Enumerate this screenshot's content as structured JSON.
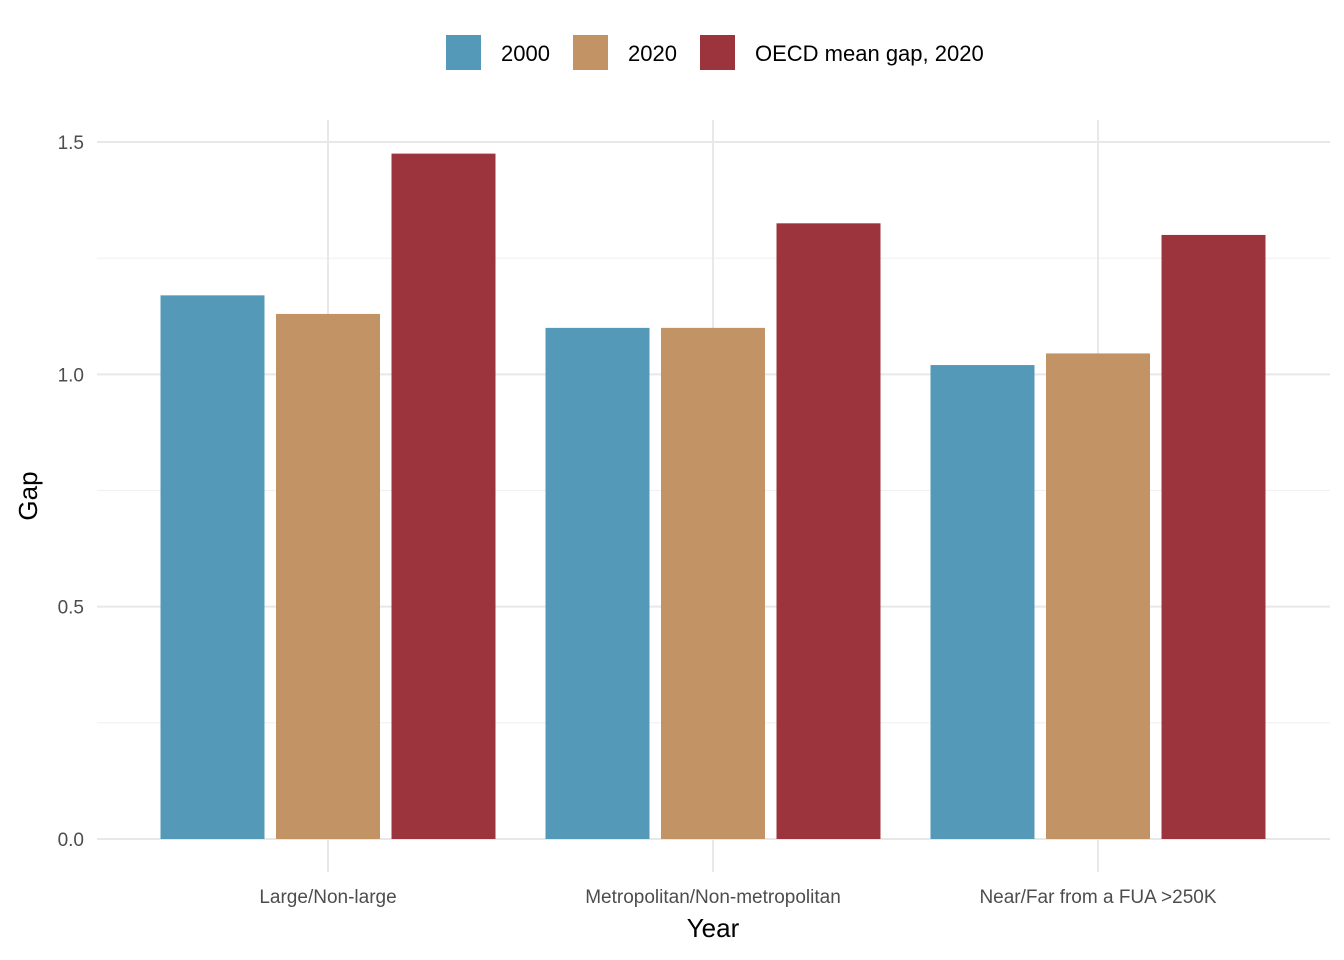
{
  "chart_data": {
    "type": "bar",
    "categories": [
      "Large/Non-large",
      "Metropolitan/Non-metropolitan",
      "Near/Far from a FUA >250K"
    ],
    "series": [
      {
        "name": "2000",
        "color": "#5499b8",
        "values": [
          1.17,
          1.1,
          1.02
        ]
      },
      {
        "name": "2020",
        "color": "#c29365",
        "values": [
          1.13,
          1.1,
          1.045
        ]
      },
      {
        "name": "OECD mean gap, 2020",
        "color": "#9c343d",
        "values": [
          1.475,
          1.325,
          1.3
        ]
      }
    ],
    "xlabel": "Year",
    "ylabel": "Gap",
    "ylim": [
      0,
      1.55
    ],
    "yticks": [
      0.0,
      0.5,
      1.0,
      1.5
    ],
    "ytick_labels": [
      "0.0",
      "0.5",
      "1.0",
      "1.5"
    ],
    "grid": true,
    "legend_position": "top"
  }
}
